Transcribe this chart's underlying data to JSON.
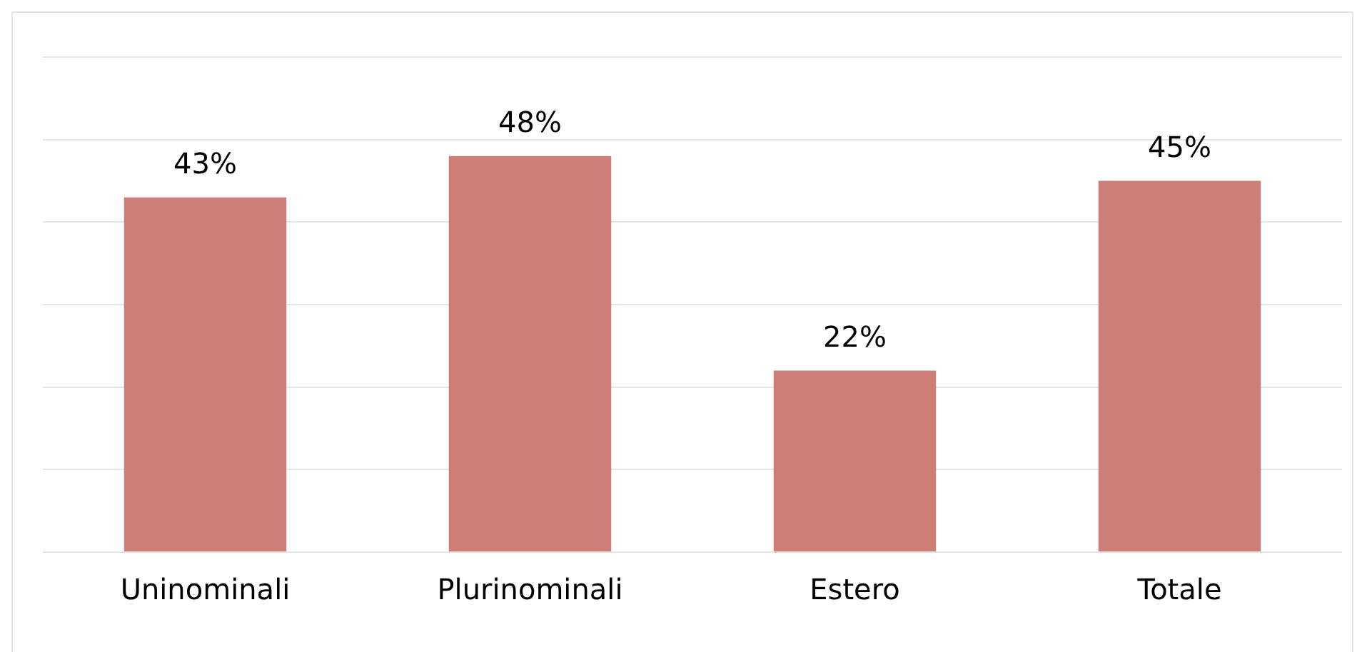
{
  "chart_data": {
    "type": "bar",
    "categories": [
      "Uninominali",
      "Plurinominali",
      "Estero",
      "Totale"
    ],
    "values": [
      43,
      48,
      22,
      45
    ],
    "value_labels": [
      "43%",
      "48%",
      "22%",
      "45%"
    ],
    "color": "#cc7e77",
    "ylim": [
      0,
      60
    ],
    "yticks": [
      {
        "value": 0,
        "label": null
      },
      {
        "value": 10,
        "label": null
      },
      {
        "value": 20,
        "label": null
      },
      {
        "value": 30,
        "label": null
      },
      {
        "value": 40,
        "label": null
      },
      {
        "value": 50,
        "label": null
      },
      {
        "value": 60,
        "label": null
      }
    ],
    "tick_labels": "x",
    "grid": "y",
    "legend": false
  }
}
